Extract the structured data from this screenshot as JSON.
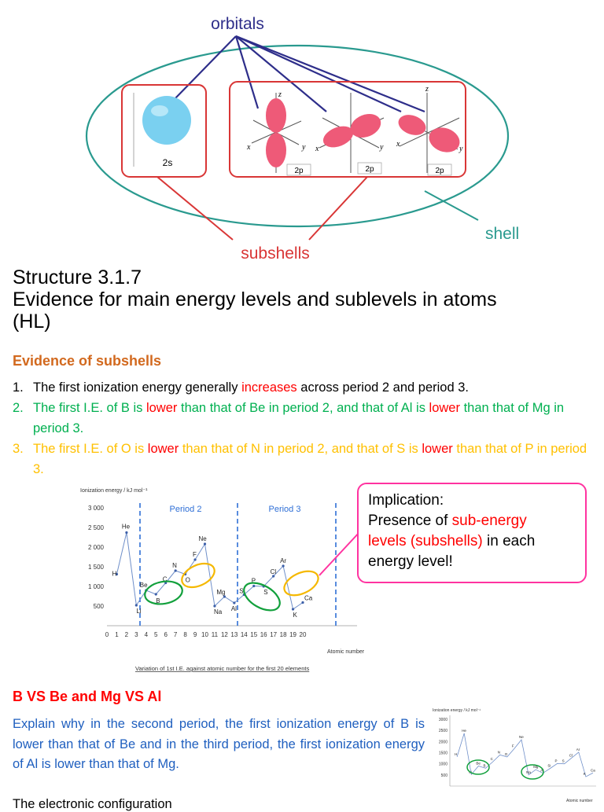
{
  "diagram": {
    "orbitals_label": "orbitals",
    "shell_label": "shell",
    "subshells_label": "subshells",
    "s_label": "2s",
    "p_labels": [
      "2p",
      "2p",
      "2p"
    ],
    "axes": {
      "x": "x",
      "y": "y",
      "z": "z"
    },
    "colors": {
      "shell": "#2a9a8f",
      "subshell": "#d93636",
      "orbitals": "#2e2e8a",
      "s_orbital": "#7ad0f0",
      "p_orbital": "#ee5a78"
    }
  },
  "title": {
    "line1": "Structure 3.1.7",
    "line2": "Evidence for main energy levels and sublevels in atoms",
    "line3": "(HL)"
  },
  "section1": {
    "heading": "Evidence of subshells",
    "p1": {
      "num": "1.",
      "a": "The first ionization energy generally ",
      "b": "increases",
      "c": " across period 2 and period 3."
    },
    "p2": {
      "num": "2.",
      "a": "The first I.E. of B is ",
      "b": "lower",
      "c": " than that of Be in period 2, and that of Al is ",
      "d": "lower",
      "e": " than that of Mg in period 3."
    },
    "p3": {
      "num": "3.",
      "a": "The first I.E. of O is ",
      "b": "lower",
      "c": " than that of N in period 2, and that of S is ",
      "d": "lower",
      "e": " than that of P in period 3."
    }
  },
  "graph": {
    "ylabel": "Ionization energy / kJ mol⁻¹",
    "xlabel": "Atomic number",
    "caption": "Variation of 1st I.E. against atomic number for the first 20 elements",
    "period2": "Period 2",
    "period3": "Period 3",
    "yticks": [
      "3 000",
      "2 500",
      "2 000",
      "1 500",
      "1 000",
      "500"
    ],
    "xticks": [
      "0",
      "1",
      "2",
      "3",
      "4",
      "5",
      "6",
      "7",
      "8",
      "9",
      "10",
      "11",
      "12",
      "13",
      "14",
      "15",
      "16",
      "17",
      "18",
      "19",
      "20"
    ]
  },
  "chart_data": {
    "type": "line",
    "xlabel": "Atomic number",
    "ylabel": "Ionization energy / kJ mol⁻¹",
    "ylim": [
      0,
      3000
    ],
    "xlim": [
      0,
      20
    ],
    "grid": false,
    "series": [
      {
        "x": [
          1,
          2,
          3,
          4,
          5,
          6,
          7,
          8,
          9,
          10,
          11,
          12,
          13,
          14,
          15,
          16,
          17,
          18,
          19,
          20
        ],
        "labels": [
          "H",
          "He",
          "Li",
          "Be",
          "B",
          "C",
          "N",
          "O",
          "F",
          "Ne",
          "Na",
          "Mg",
          "Al",
          "Si",
          "P",
          "S",
          "Cl",
          "Ar",
          "K",
          "Ca"
        ],
        "values": [
          1310,
          2370,
          520,
          900,
          800,
          1090,
          1400,
          1310,
          1680,
          2080,
          500,
          740,
          580,
          790,
          1010,
          1000,
          1260,
          1520,
          420,
          590
        ]
      }
    ]
  },
  "callout": {
    "line1": "Implication:",
    "line2a": "Presence of ",
    "line2b": "sub-energy",
    "line3a": "levels (subshells)",
    "line3b": " in each",
    "line4": "energy level!"
  },
  "section2": {
    "heading": "B VS Be and Mg VS Al",
    "text": "Explain why in the second period, the first ionization energy of B is lower than that of Be and in the third period, the first ionization energy of Al is lower than that of Mg.",
    "partial": "The electronic configuration"
  },
  "mini_graph": {
    "ylabel": "Ionization energy / kJ mol⁻¹",
    "xlabel": "Atomic number",
    "yticks": [
      "3000",
      "2500",
      "2000",
      "1500",
      "1000",
      "500"
    ]
  }
}
